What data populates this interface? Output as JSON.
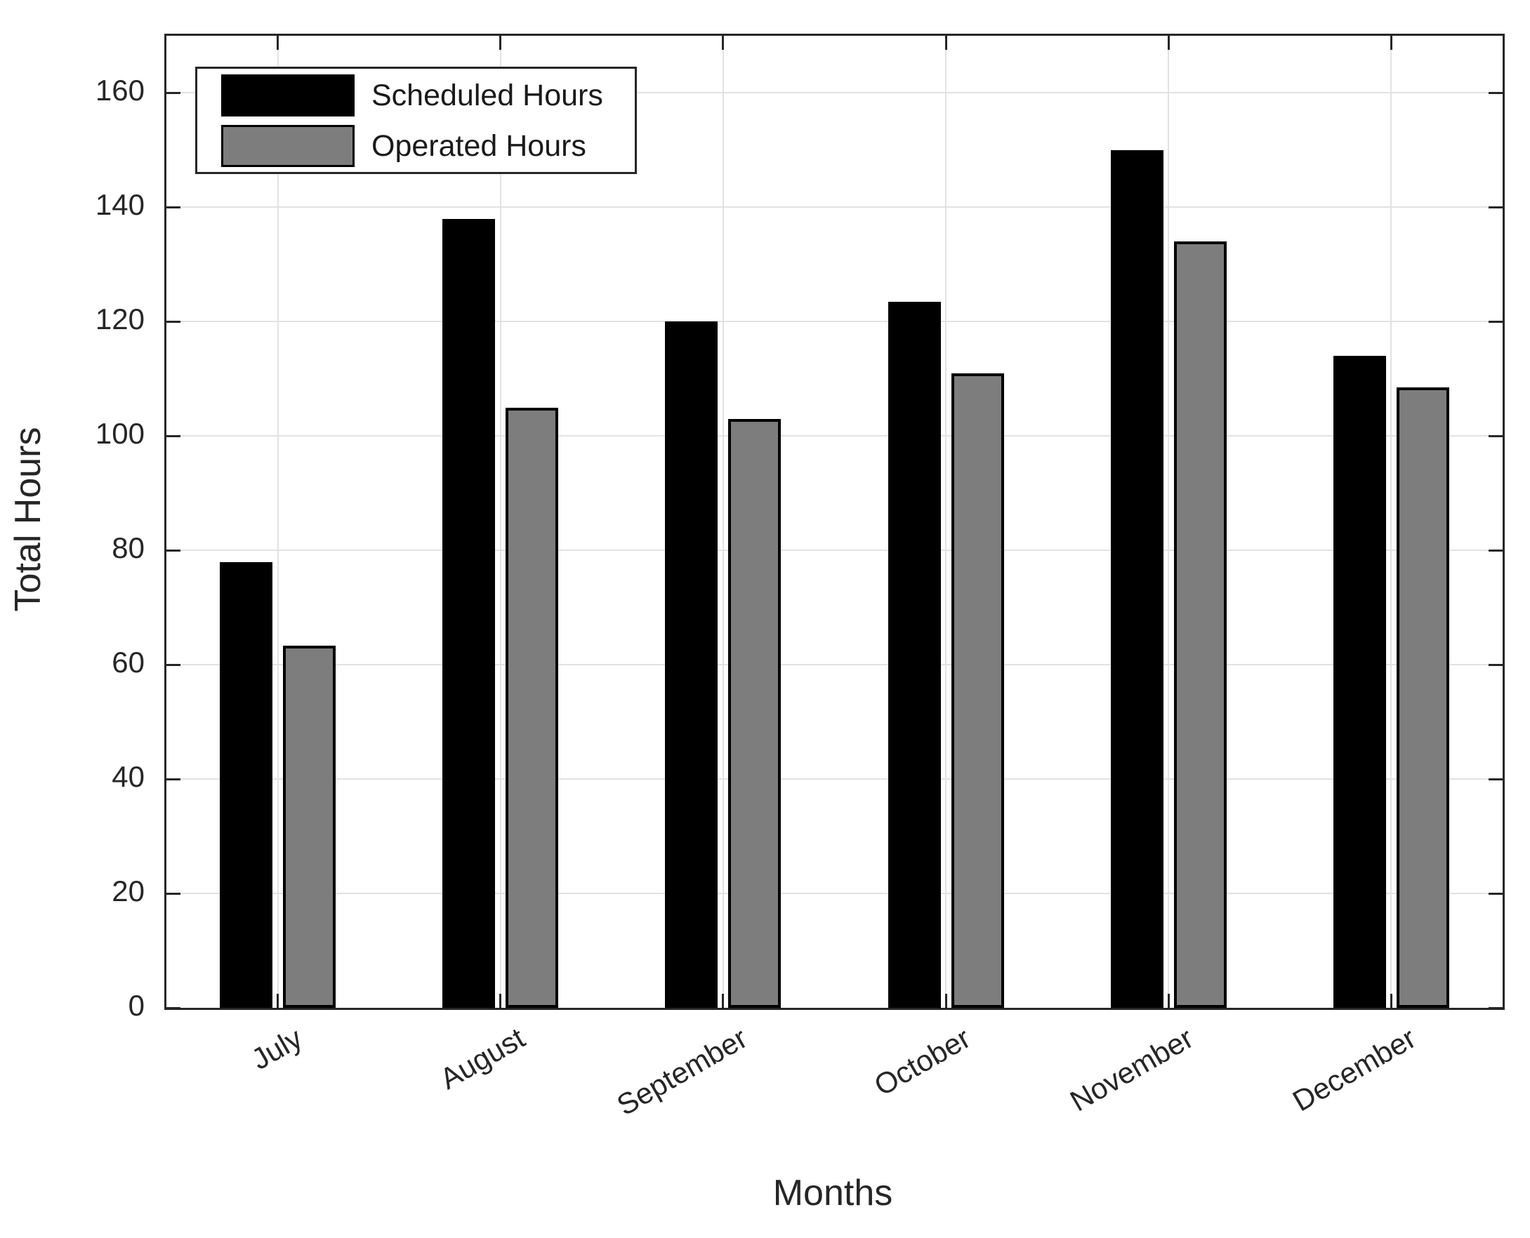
{
  "chart_data": {
    "type": "bar",
    "title": "",
    "xlabel": "Months",
    "ylabel": "Total Hours",
    "categories": [
      "July",
      "August",
      "September",
      "October",
      "November",
      "December"
    ],
    "series": [
      {
        "name": "Scheduled Hours",
        "color": "#000000",
        "values": [
          78,
          138,
          120,
          123.5,
          150,
          114
        ]
      },
      {
        "name": "Operated Hours",
        "color": "#7d7d7d",
        "values": [
          63.3,
          105,
          103,
          111,
          134,
          108.5
        ]
      }
    ],
    "ylim": [
      0,
      170
    ],
    "yticks": [
      0,
      20,
      40,
      60,
      80,
      100,
      120,
      140,
      160
    ],
    "grid": "on",
    "grid_color": "#e2e2e2",
    "axis_color": "#262626",
    "bar_edge_color": "#000000",
    "background_color": "#ffffff",
    "legend_position": "top-left",
    "xtick_label_rotation_deg": 30
  }
}
